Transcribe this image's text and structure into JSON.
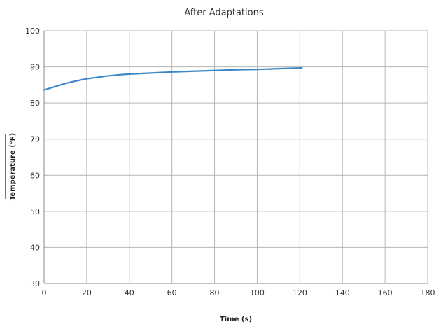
{
  "chart_data": {
    "type": "line",
    "title": "After Adaptations",
    "xlabel": "Time (s)",
    "ylabel": "Temperature (°F)",
    "xlim": [
      0,
      180
    ],
    "ylim": [
      30,
      100
    ],
    "x_ticks": [
      0,
      20,
      40,
      60,
      80,
      100,
      120,
      140,
      160,
      180
    ],
    "y_ticks": [
      30,
      40,
      50,
      60,
      70,
      80,
      90,
      100
    ],
    "grid": true,
    "legend": "none",
    "series": [
      {
        "color": "#3a87c8",
        "x": [
          0,
          5,
          10,
          15,
          20,
          25,
          30,
          35,
          40,
          50,
          60,
          70,
          80,
          90,
          100,
          110,
          121
        ],
        "y": [
          83.6,
          84.5,
          85.4,
          86.1,
          86.7,
          87.1,
          87.5,
          87.8,
          88.0,
          88.3,
          88.6,
          88.8,
          89.0,
          89.2,
          89.3,
          89.5,
          89.7
        ]
      }
    ]
  }
}
